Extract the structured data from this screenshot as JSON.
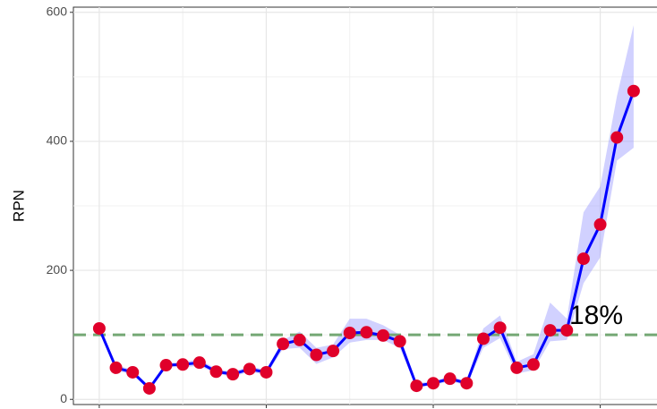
{
  "chart_data": {
    "type": "line",
    "y_label": "RPN",
    "x": [
      1,
      2,
      3,
      4,
      5,
      6,
      7,
      8,
      9,
      10,
      11,
      12,
      13,
      14,
      15,
      16,
      17,
      18,
      19,
      20,
      21,
      22,
      23,
      24,
      25,
      26,
      27,
      28,
      29,
      30,
      31,
      32,
      33
    ],
    "series": [
      {
        "color": "#0000ff",
        "point_color": "#e0002a",
        "values": [
          110,
          49,
          42,
          17,
          53,
          54,
          57,
          43,
          39,
          47,
          42,
          86,
          92,
          69,
          75,
          103,
          104,
          99,
          90,
          21,
          25,
          32,
          25,
          94,
          111,
          49,
          54,
          107,
          107,
          218,
          271,
          406,
          478
        ],
        "lower": [
          105,
          45,
          38,
          14,
          50,
          50,
          52,
          40,
          35,
          43,
          38,
          78,
          80,
          55,
          65,
          88,
          92,
          92,
          80,
          18,
          22,
          28,
          22,
          80,
          95,
          40,
          45,
          90,
          92,
          180,
          220,
          370,
          390
        ],
        "upper": [
          115,
          53,
          46,
          20,
          56,
          58,
          62,
          47,
          43,
          51,
          46,
          92,
          105,
          80,
          85,
          125,
          125,
          115,
          100,
          25,
          28,
          36,
          28,
          110,
          130,
          58,
          70,
          150,
          125,
          290,
          330,
          470,
          580
        ],
        "band_color": "#9999ff"
      }
    ],
    "reference_line": {
      "value": 100,
      "color": "#74a874",
      "label": "18%"
    },
    "xlim": [
      -0.55,
      34.4
    ],
    "xticks": [
      1,
      11,
      21,
      31
    ],
    "ylim": [
      -8,
      608
    ],
    "yticks": [
      0,
      200,
      400,
      600
    ],
    "grid": true
  }
}
